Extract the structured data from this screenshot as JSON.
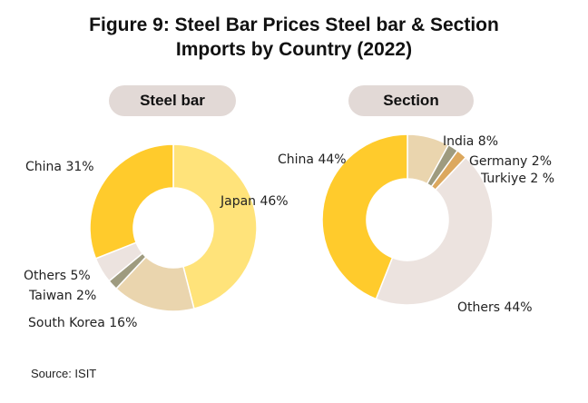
{
  "title": {
    "line1": "Figure 9: Steel Bar Prices Steel bar & Section",
    "line2": "Imports by Country (2022)"
  },
  "source": "Source: ISIT",
  "chart_data": [
    {
      "type": "pie",
      "style": "donut",
      "title": "Steel bar",
      "slices": [
        {
          "label": "Japan",
          "value": 46,
          "text": "Japan 46%",
          "color": "#ffe37a"
        },
        {
          "label": "South Korea",
          "value": 16,
          "text": "South Korea 16%",
          "color": "#ead5ae"
        },
        {
          "label": "Taiwan",
          "value": 2,
          "text": "Taiwan 2%",
          "color": "#9e9b7f"
        },
        {
          "label": "Others",
          "value": 5,
          "text": "Others 5%",
          "color": "#ece3df"
        },
        {
          "label": "China",
          "value": 31,
          "text": "China 31%",
          "color": "#ffcb2c"
        }
      ]
    },
    {
      "type": "pie",
      "style": "donut",
      "title": "Section",
      "slices": [
        {
          "label": "India",
          "value": 8,
          "text": "India 8%",
          "color": "#ead5ae"
        },
        {
          "label": "Germany",
          "value": 2,
          "text": "Germany 2%",
          "color": "#9e9b7f"
        },
        {
          "label": "Turkiye",
          "value": 2,
          "text": "Turkiye 2 %",
          "color": "#dca85e"
        },
        {
          "label": "Others",
          "value": 44,
          "text": "Others 44%",
          "color": "#ece3df"
        },
        {
          "label": "China",
          "value": 44,
          "text": "China 44%",
          "color": "#ffcb2c"
        }
      ]
    }
  ]
}
